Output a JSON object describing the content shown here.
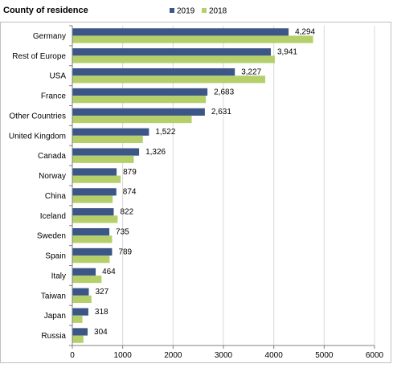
{
  "chart_data": {
    "type": "bar",
    "orientation": "horizontal",
    "title": "County of residence",
    "categories": [
      "Germany",
      "Rest of Europe",
      "USA",
      "France",
      "Other Countries",
      "United Kingdom",
      "Canada",
      "Norway",
      "China",
      "Iceland",
      "Sweden",
      "Spain",
      "Italy",
      "Taiwan",
      "Japan",
      "Russia"
    ],
    "series": [
      {
        "name": "2019",
        "color": "#3d5688",
        "values": [
          4294,
          3941,
          3227,
          2683,
          2631,
          1522,
          1326,
          879,
          874,
          822,
          735,
          789,
          464,
          327,
          318,
          304
        ],
        "data_labels": [
          "4,294",
          "3,941",
          "3,227",
          "2,683",
          "2,631",
          "1,522",
          "1,326",
          "879",
          "874",
          "822",
          "735",
          "789",
          "464",
          "327",
          "318",
          "304"
        ]
      },
      {
        "name": "2018",
        "color": "#b5cf6b",
        "values": [
          4780,
          4020,
          3830,
          2650,
          2370,
          1400,
          1220,
          960,
          800,
          900,
          790,
          740,
          580,
          380,
          200,
          220
        ]
      }
    ],
    "xlim": [
      0,
      6000
    ],
    "xticks": [
      0,
      1000,
      2000,
      3000,
      4000,
      5000,
      6000
    ],
    "xtick_labels": [
      "0",
      "1000",
      "2000",
      "3000",
      "4000",
      "5000",
      "6000"
    ],
    "grid": "vertical",
    "legend_position": "top"
  }
}
